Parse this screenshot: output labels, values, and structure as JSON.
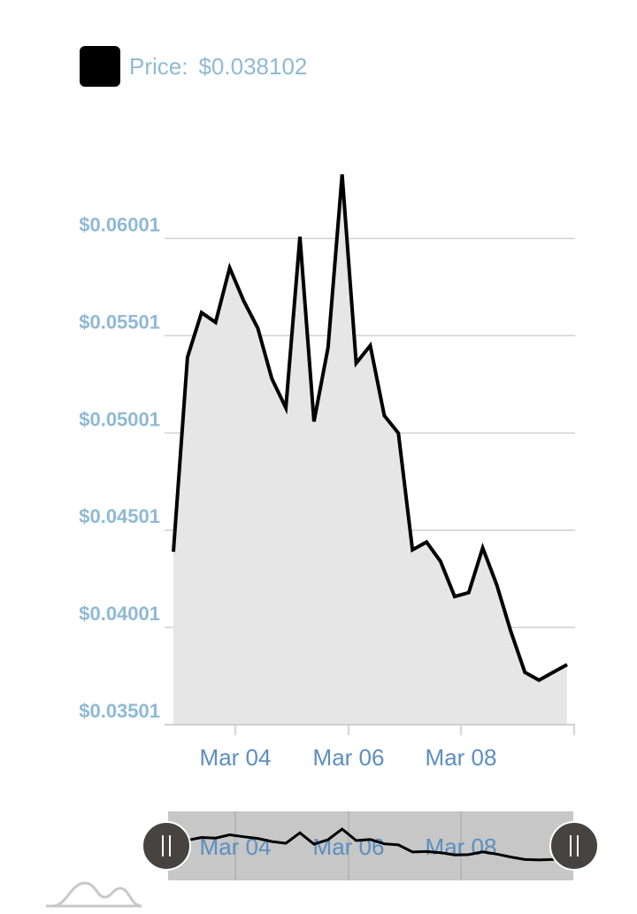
{
  "legend": {
    "label": "Price:",
    "value": "$0.038102",
    "swatch_color": "#000000"
  },
  "colors": {
    "line": "#000000",
    "area": "#e6e6e6",
    "grid": "#d0d0d0",
    "tick_label": "#8fb9d6",
    "x_label": "#5c8fbf",
    "navigator_bg": "#c7c7c7",
    "handle": "#474341"
  },
  "chart_data": {
    "type": "area",
    "title": "",
    "xlabel": "",
    "ylabel": "",
    "x_start": "2025-03-03 00:00",
    "x_end": "2025-03-09 23:59",
    "xlim": [
      "Mar 03",
      "Mar 10"
    ],
    "ylim": [
      0.03501,
      0.06331
    ],
    "y_ticks": [
      0.03501,
      0.04001,
      0.04501,
      0.05001,
      0.05501,
      0.06001
    ],
    "y_tick_labels": [
      "$0.03501",
      "$0.04001",
      "$0.04501",
      "$0.05001",
      "$0.05501",
      "$0.06001"
    ],
    "x_ticks": [
      "Mar 04",
      "Mar 06",
      "Mar 08"
    ],
    "grid": true,
    "legend_position": "top-left",
    "series": [
      {
        "name": "Price",
        "x": [
          "Mar 03 00:00",
          "Mar 03 06:00",
          "Mar 03 12:00",
          "Mar 03 18:00",
          "Mar 04 00:00",
          "Mar 04 06:00",
          "Mar 04 12:00",
          "Mar 04 18:00",
          "Mar 05 00:00",
          "Mar 05 06:00",
          "Mar 05 12:00",
          "Mar 05 18:00",
          "Mar 06 00:00",
          "Mar 06 06:00",
          "Mar 06 12:00",
          "Mar 06 18:00",
          "Mar 07 00:00",
          "Mar 07 06:00",
          "Mar 07 12:00",
          "Mar 07 18:00",
          "Mar 08 00:00",
          "Mar 08 06:00",
          "Mar 08 12:00",
          "Mar 08 18:00",
          "Mar 09 00:00",
          "Mar 09 06:00",
          "Mar 09 12:00",
          "Mar 09 18:00",
          "Mar 09 23:59"
        ],
        "values": [
          0.0439,
          0.0539,
          0.0562,
          0.0557,
          0.0585,
          0.0568,
          0.0554,
          0.0528,
          0.0513,
          0.0601,
          0.0506,
          0.0544,
          0.0633,
          0.0536,
          0.0545,
          0.0509,
          0.05,
          0.044,
          0.0444,
          0.0434,
          0.0416,
          0.0418,
          0.0441,
          0.0422,
          0.0398,
          0.0377,
          0.0373,
          0.0377,
          0.0381
        ]
      }
    ]
  },
  "navigator": {
    "x_ticks": [
      "Mar 04",
      "Mar 06",
      "Mar 08"
    ],
    "left_handle_icon": "grip-lines-icon",
    "right_handle_icon": "grip-lines-icon"
  },
  "footer": {
    "icon": "mini-chart-logo-icon"
  }
}
